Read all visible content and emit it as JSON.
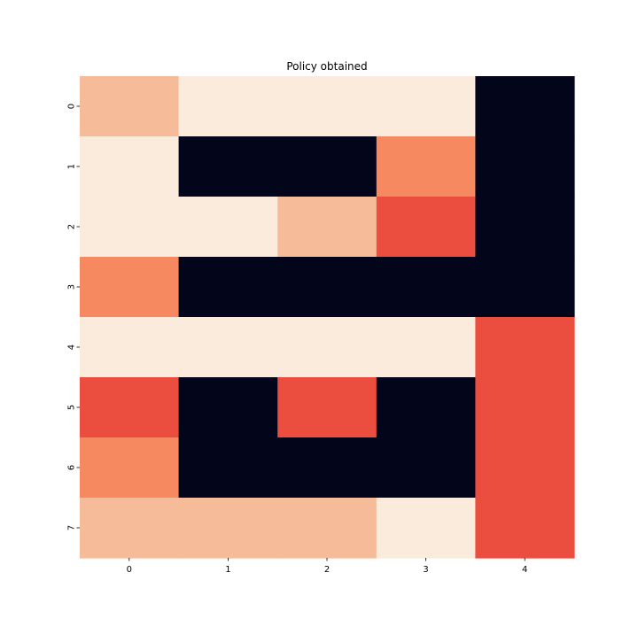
{
  "chart_data": {
    "type": "heatmap",
    "title": "Policy obtained",
    "xlabel": "",
    "ylabel": "",
    "x_categories": [
      "0",
      "1",
      "2",
      "3",
      "4"
    ],
    "y_categories": [
      "0",
      "1",
      "2",
      "3",
      "4",
      "5",
      "6",
      "7"
    ],
    "values": [
      [
        2,
        1,
        1,
        1,
        5
      ],
      [
        1,
        5,
        5,
        3,
        5
      ],
      [
        1,
        1,
        2,
        4,
        5
      ],
      [
        3,
        5,
        5,
        5,
        5
      ],
      [
        1,
        1,
        1,
        1,
        4
      ],
      [
        4,
        5,
        4,
        5,
        4
      ],
      [
        3,
        5,
        5,
        5,
        4
      ],
      [
        2,
        2,
        2,
        1,
        4
      ]
    ],
    "colorbar": false,
    "grid": false,
    "colors": {
      "1": "#faebdd",
      "2": "#f6bc9a",
      "3": "#f6895f",
      "4": "#eb4d3f",
      "5": "#03051a"
    }
  }
}
